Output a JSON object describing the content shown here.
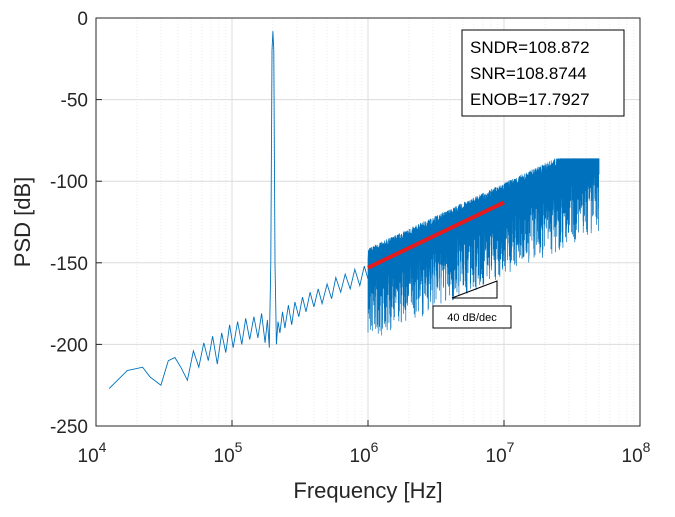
{
  "chart_data": {
    "type": "line",
    "title": "",
    "xlabel": "Frequency [Hz]",
    "ylabel": "PSD [dB]",
    "xscale": "log",
    "xlim": [
      10000,
      100000000
    ],
    "ylim": [
      -250,
      0
    ],
    "grid": true,
    "x_ticks": [
      {
        "value": 10000,
        "base": "10",
        "exp": "4"
      },
      {
        "value": 100000,
        "base": "10",
        "exp": "5"
      },
      {
        "value": 1000000,
        "base": "10",
        "exp": "6"
      },
      {
        "value": 10000000,
        "base": "10",
        "exp": "7"
      },
      {
        "value": 100000000,
        "base": "10",
        "exp": "8"
      }
    ],
    "y_ticks": [
      0,
      -50,
      -100,
      -150,
      -200,
      -250
    ],
    "series": [
      {
        "name": "PSD",
        "color": "#0072BD",
        "signal_tone": {
          "freq": 200000,
          "peak_db": -8
        },
        "points": [
          [
            12500,
            -227
          ],
          [
            17000,
            -216
          ],
          [
            22000,
            -214
          ],
          [
            25000,
            -220
          ],
          [
            30000,
            -225
          ],
          [
            34000,
            -210
          ],
          [
            38000,
            -208
          ],
          [
            42000,
            -214
          ],
          [
            47000,
            -222
          ],
          [
            52000,
            -204
          ],
          [
            57000,
            -214
          ],
          [
            62000,
            -199
          ],
          [
            67000,
            -210
          ],
          [
            72000,
            -195
          ],
          [
            78000,
            -212
          ],
          [
            84000,
            -193
          ],
          [
            90000,
            -205
          ],
          [
            96000,
            -188
          ],
          [
            102000,
            -202
          ],
          [
            110000,
            -186
          ],
          [
            118000,
            -200
          ],
          [
            126000,
            -184
          ],
          [
            135000,
            -197
          ],
          [
            145000,
            -183
          ],
          [
            155000,
            -196
          ],
          [
            165000,
            -181
          ],
          [
            175000,
            -199
          ],
          [
            182000,
            -185
          ],
          [
            188000,
            -202
          ],
          [
            193000,
            -150
          ],
          [
            197000,
            -20
          ],
          [
            200000,
            -8
          ],
          [
            203000,
            -20
          ],
          [
            207000,
            -150
          ],
          [
            212000,
            -200
          ],
          [
            218000,
            -186
          ],
          [
            225000,
            -193
          ],
          [
            235000,
            -180
          ],
          [
            245000,
            -190
          ],
          [
            260000,
            -176
          ],
          [
            275000,
            -188
          ],
          [
            290000,
            -174
          ],
          [
            310000,
            -183
          ],
          [
            330000,
            -171
          ],
          [
            350000,
            -180
          ],
          [
            375000,
            -168
          ],
          [
            400000,
            -177
          ],
          [
            430000,
            -166
          ],
          [
            460000,
            -175
          ],
          [
            500000,
            -163
          ],
          [
            540000,
            -172
          ],
          [
            580000,
            -159
          ],
          [
            630000,
            -168
          ],
          [
            680000,
            -157
          ],
          [
            740000,
            -166
          ],
          [
            800000,
            -154
          ],
          [
            870000,
            -164
          ],
          [
            940000,
            -152
          ],
          [
            1000000,
            -160
          ]
        ]
      },
      {
        "name": "40 dB/dec fit",
        "color": "#e41a1c",
        "points": [
          [
            1000000,
            -153
          ],
          [
            10000000,
            -113
          ]
        ]
      }
    ],
    "annotations": {
      "metrics": [
        "SNDR=108.872",
        "SNR=108.8744",
        "ENOB=17.7927"
      ],
      "slope_label": "40 dB/dec"
    }
  }
}
